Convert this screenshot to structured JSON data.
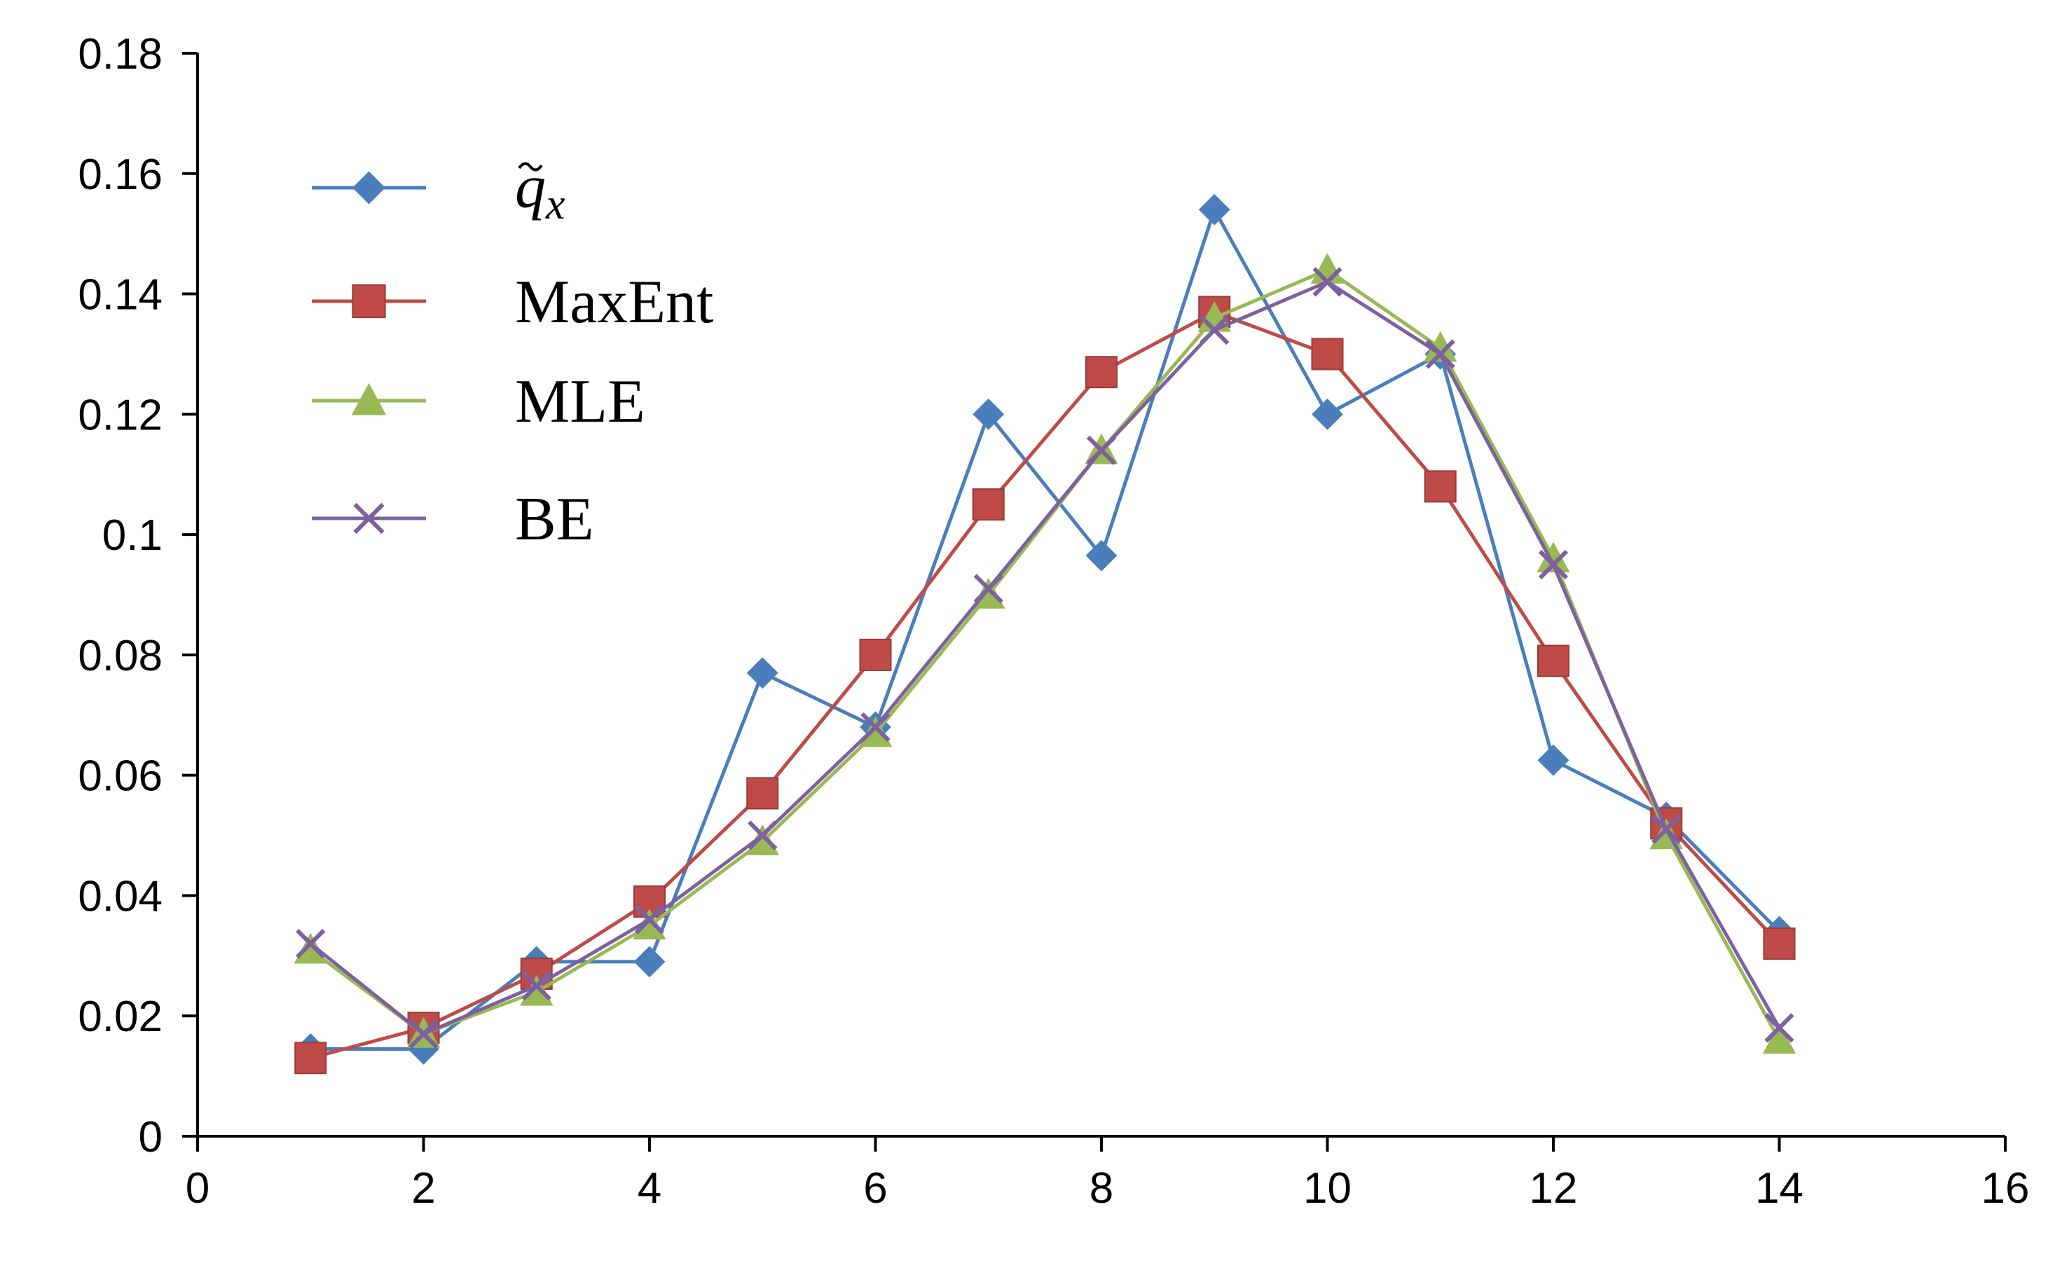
{
  "chart_data": {
    "type": "line",
    "title": "",
    "xlabel": "",
    "ylabel": "",
    "xlim": [
      0,
      16
    ],
    "ylim": [
      0,
      0.18
    ],
    "xticks": [
      0,
      2,
      4,
      6,
      8,
      10,
      12,
      14,
      16
    ],
    "yticks": [
      0,
      0.02,
      0.04,
      0.06,
      0.08,
      0.1,
      0.12,
      0.14,
      0.16,
      0.18
    ],
    "xtick_labels": [
      "0",
      "2",
      "4",
      "6",
      "8",
      "10",
      "12",
      "14",
      "16"
    ],
    "ytick_labels": [
      "0",
      "0.02",
      "0.04",
      "0.06",
      "0.08",
      "0.1",
      "0.12",
      "0.14",
      "0.16",
      "0.18"
    ],
    "grid": false,
    "legend_position": "top-left",
    "x": [
      1,
      2,
      3,
      4,
      5,
      6,
      7,
      8,
      9,
      10,
      11,
      12,
      13,
      14
    ],
    "series": [
      {
        "name": "q̃x",
        "legend_base": "q",
        "legend_sub": "x",
        "color": "#4a7ebb",
        "marker": "diamond",
        "values": [
          0.0145,
          0.0145,
          0.029,
          0.029,
          0.077,
          0.068,
          0.12,
          0.0965,
          0.154,
          0.12,
          0.13,
          0.0625,
          0.053,
          0.034
        ]
      },
      {
        "name": "MaxEnt",
        "color": "#be4b48",
        "marker": "square",
        "values": [
          0.013,
          0.018,
          0.027,
          0.039,
          0.057,
          0.08,
          0.105,
          0.127,
          0.137,
          0.13,
          0.108,
          0.079,
          0.052,
          0.032
        ]
      },
      {
        "name": "MLE",
        "color": "#98b954",
        "marker": "triangle",
        "values": [
          0.031,
          0.017,
          0.024,
          0.035,
          0.049,
          0.067,
          0.09,
          0.114,
          0.136,
          0.144,
          0.131,
          0.096,
          0.05,
          0.016
        ]
      },
      {
        "name": "BE",
        "color": "#7d60a0",
        "marker": "x",
        "values": [
          0.032,
          0.017,
          0.025,
          0.036,
          0.05,
          0.068,
          0.091,
          0.114,
          0.134,
          0.142,
          0.13,
          0.095,
          0.051,
          0.018
        ]
      }
    ]
  }
}
